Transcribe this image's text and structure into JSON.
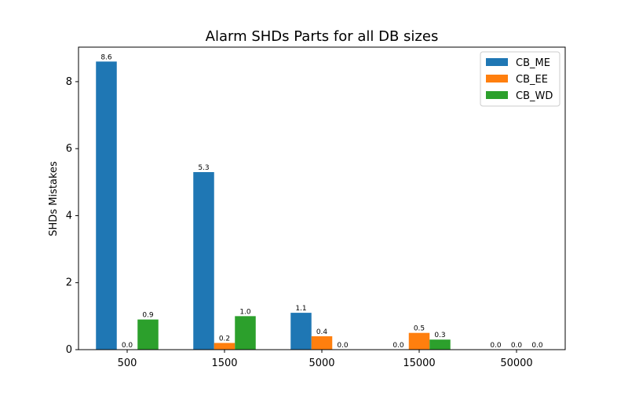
{
  "chart_data": {
    "type": "bar",
    "title": "Alarm SHDs Parts for all DB sizes",
    "xlabel": "",
    "ylabel": "SHDs Mistakes",
    "categories": [
      "500",
      "1500",
      "5000",
      "15000",
      "50000"
    ],
    "series": [
      {
        "name": "CB_ME",
        "color": "#1f77b4",
        "values": [
          8.6,
          5.3,
          1.1,
          0.0,
          0.0
        ]
      },
      {
        "name": "CB_EE",
        "color": "#ff7f0e",
        "values": [
          0.0,
          0.2,
          0.4,
          0.5,
          0.0
        ]
      },
      {
        "name": "CB_WD",
        "color": "#2ca02c",
        "values": [
          0.9,
          1.0,
          0.0,
          0.3,
          0.0
        ]
      }
    ],
    "ylim": [
      0,
      9.03
    ],
    "yticks": [
      0,
      2,
      4,
      6,
      8
    ],
    "legend": "top-right",
    "grid": false
  }
}
